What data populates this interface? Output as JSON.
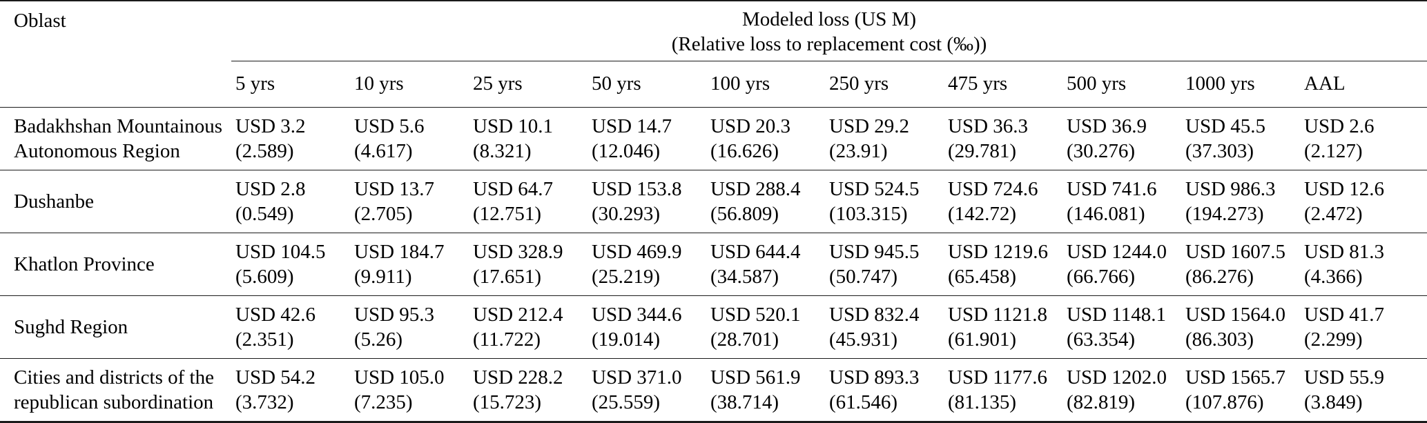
{
  "table": {
    "corner_header": "Oblast",
    "group_header_line1": "Modeled loss (US M)",
    "group_header_line2": "(Relative loss to replacement cost (‰))",
    "columns": [
      "5 yrs",
      "10 yrs",
      "25 yrs",
      "50 yrs",
      "100 yrs",
      "250 yrs",
      "475 yrs",
      "500 yrs",
      "1000 yrs",
      "AAL"
    ],
    "rows": [
      {
        "oblast_lines": [
          "Badakhshan Mountainous",
          "Autonomous Region"
        ],
        "cells": [
          {
            "loss": "USD 3.2",
            "rel": "(2.589)"
          },
          {
            "loss": "USD 5.6",
            "rel": "(4.617)"
          },
          {
            "loss": "USD 10.1",
            "rel": "(8.321)"
          },
          {
            "loss": "USD 14.7",
            "rel": "(12.046)"
          },
          {
            "loss": "USD 20.3",
            "rel": "(16.626)"
          },
          {
            "loss": "USD 29.2",
            "rel": "(23.91)"
          },
          {
            "loss": "USD 36.3",
            "rel": "(29.781)"
          },
          {
            "loss": "USD 36.9",
            "rel": "(30.276)"
          },
          {
            "loss": "USD 45.5",
            "rel": "(37.303)"
          },
          {
            "loss": "USD 2.6",
            "rel": "(2.127)"
          }
        ]
      },
      {
        "oblast_lines": [
          "Dushanbe"
        ],
        "cells": [
          {
            "loss": "USD 2.8",
            "rel": "(0.549)"
          },
          {
            "loss": "USD 13.7",
            "rel": "(2.705)"
          },
          {
            "loss": "USD 64.7",
            "rel": "(12.751)"
          },
          {
            "loss": "USD 153.8",
            "rel": "(30.293)"
          },
          {
            "loss": "USD 288.4",
            "rel": "(56.809)"
          },
          {
            "loss": "USD 524.5",
            "rel": "(103.315)"
          },
          {
            "loss": "USD 724.6",
            "rel": "(142.72)"
          },
          {
            "loss": "USD 741.6",
            "rel": "(146.081)"
          },
          {
            "loss": "USD 986.3",
            "rel": "(194.273)"
          },
          {
            "loss": "USD 12.6",
            "rel": "(2.472)"
          }
        ]
      },
      {
        "oblast_lines": [
          "Khatlon Province"
        ],
        "cells": [
          {
            "loss": "USD 104.5",
            "rel": "(5.609)"
          },
          {
            "loss": "USD 184.7",
            "rel": "(9.911)"
          },
          {
            "loss": "USD 328.9",
            "rel": "(17.651)"
          },
          {
            "loss": "USD 469.9",
            "rel": "(25.219)"
          },
          {
            "loss": "USD 644.4",
            "rel": "(34.587)"
          },
          {
            "loss": "USD 945.5",
            "rel": "(50.747)"
          },
          {
            "loss": "USD 1219.6",
            "rel": "(65.458)"
          },
          {
            "loss": "USD 1244.0",
            "rel": "(66.766)"
          },
          {
            "loss": "USD 1607.5",
            "rel": "(86.276)"
          },
          {
            "loss": "USD 81.3",
            "rel": "(4.366)"
          }
        ]
      },
      {
        "oblast_lines": [
          "Sughd Region"
        ],
        "cells": [
          {
            "loss": "USD 42.6",
            "rel": "(2.351)"
          },
          {
            "loss": "USD 95.3",
            "rel": "(5.26)"
          },
          {
            "loss": "USD 212.4",
            "rel": "(11.722)"
          },
          {
            "loss": "USD 344.6",
            "rel": "(19.014)"
          },
          {
            "loss": "USD 520.1",
            "rel": "(28.701)"
          },
          {
            "loss": "USD 832.4",
            "rel": "(45.931)"
          },
          {
            "loss": "USD 1121.8",
            "rel": "(61.901)"
          },
          {
            "loss": "USD 1148.1",
            "rel": "(63.354)"
          },
          {
            "loss": "USD 1564.0",
            "rel": "(86.303)"
          },
          {
            "loss": "USD 41.7",
            "rel": "(2.299)"
          }
        ]
      },
      {
        "oblast_lines": [
          "Cities and districts of the",
          "republican subordination"
        ],
        "cells": [
          {
            "loss": "USD 54.2",
            "rel": "(3.732)"
          },
          {
            "loss": "USD 105.0",
            "rel": "(7.235)"
          },
          {
            "loss": "USD 228.2",
            "rel": "(15.723)"
          },
          {
            "loss": "USD 371.0",
            "rel": "(25.559)"
          },
          {
            "loss": "USD 561.9",
            "rel": "(38.714)"
          },
          {
            "loss": "USD 893.3",
            "rel": "(61.546)"
          },
          {
            "loss": "USD 1177.6",
            "rel": "(81.135)"
          },
          {
            "loss": "USD 1202.0",
            "rel": "(82.819)"
          },
          {
            "loss": "USD 1565.7",
            "rel": "(107.876)"
          },
          {
            "loss": "USD 55.9",
            "rel": "(3.849)"
          }
        ]
      }
    ],
    "colors": {
      "text": "#000000",
      "rule": "#1a1a1a",
      "background": "#ffffff"
    }
  }
}
